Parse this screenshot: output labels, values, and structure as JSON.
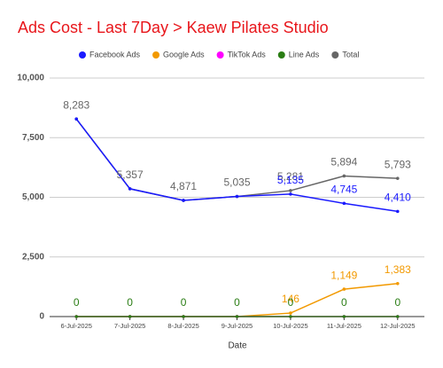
{
  "chart_data": {
    "type": "line",
    "title": "Ads Cost - Last 7Day > Kaew Pilates Studio",
    "x_label": "Date",
    "categories": [
      "6-Jul-2025",
      "7-Jul-2025",
      "8-Jul-2025",
      "9-Jul-2025",
      "10-Jul-2025",
      "11-Jul-2025",
      "12-Jul-2025"
    ],
    "series": [
      {
        "name": "Facebook Ads",
        "color": "#1a1aff",
        "values": [
          8283,
          5357,
          4871,
          5035,
          5135,
          4745,
          4410
        ],
        "value_labels": [
          null,
          null,
          null,
          null,
          "5,135",
          "4,745",
          "4,410"
        ]
      },
      {
        "name": "Google Ads",
        "color": "#f29900",
        "values": [
          0,
          0,
          0,
          0,
          146,
          1149,
          1383
        ],
        "value_labels": [
          null,
          null,
          null,
          null,
          "146",
          "1,149",
          "1,383"
        ]
      },
      {
        "name": "TikTok Ads",
        "color": "#ff00ff",
        "values": [
          0,
          0,
          0,
          0,
          0,
          0,
          0
        ],
        "value_labels": [
          null,
          null,
          null,
          null,
          null,
          null,
          null
        ]
      },
      {
        "name": "Line Ads",
        "color": "#2a7d14",
        "values": [
          0,
          0,
          0,
          0,
          0,
          0,
          0
        ],
        "value_labels": [
          "0",
          "0",
          "0",
          "0",
          "0",
          "0",
          "0"
        ]
      },
      {
        "name": "Total",
        "color": "#666666",
        "values": [
          8283,
          5357,
          4871,
          5035,
          5281,
          5894,
          5793
        ],
        "value_labels": [
          "8,283",
          "5,357",
          "4,871",
          "5,035",
          "5,281",
          "5,894",
          "5,793"
        ]
      }
    ],
    "ylim": [
      0,
      10000
    ],
    "yticks": [
      0,
      {
        "value": 2500,
        "label": "2,500"
      },
      {
        "value": 5000,
        "label": "5,000"
      },
      {
        "value": 7500,
        "label": "7,500"
      },
      {
        "value": 10000,
        "label": "10,000"
      }
    ],
    "grid": true,
    "legend": "top"
  }
}
